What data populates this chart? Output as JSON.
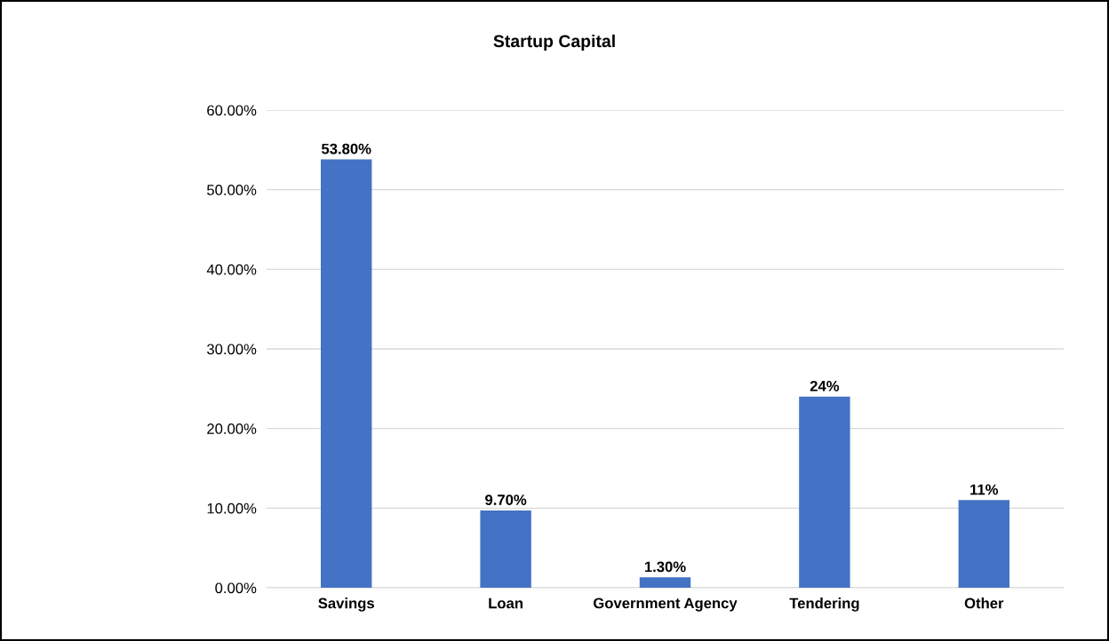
{
  "chart_data": {
    "type": "bar",
    "title": "Startup Capital",
    "categories": [
      "Savings",
      "Loan",
      "Government Agency",
      "Tendering",
      "Other"
    ],
    "values": [
      53.8,
      9.7,
      1.3,
      24,
      11
    ],
    "value_labels": [
      "53.80%",
      "9.70%",
      "1.30%",
      "24%",
      "11%"
    ],
    "color": "#4472c4",
    "ylim": [
      0,
      60
    ],
    "yticks": [
      {
        "value": 0,
        "label": "0.00%"
      },
      {
        "value": 10,
        "label": "10.00%"
      },
      {
        "value": 20,
        "label": "20.00%"
      },
      {
        "value": 30,
        "label": "30.00%"
      },
      {
        "value": 40,
        "label": "40.00%"
      },
      {
        "value": 50,
        "label": "50.00%"
      },
      {
        "value": 60,
        "label": "60.00%"
      }
    ],
    "grid": "y",
    "legend": false
  }
}
